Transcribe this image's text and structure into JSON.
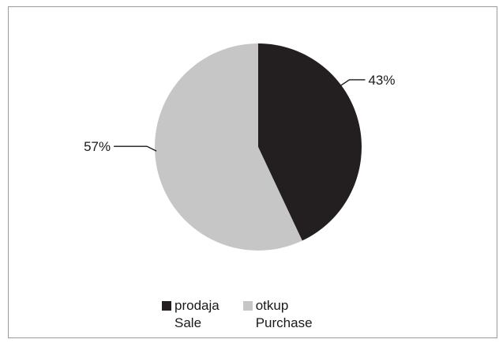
{
  "chart_data": {
    "type": "pie",
    "slices": [
      {
        "label_line1": "prodaja",
        "label_line2": "Sale",
        "value": 43,
        "data_label": "43%",
        "color": "#231f20"
      },
      {
        "label_line1": "otkup",
        "label_line2": "Purchase",
        "value": 57,
        "data_label": "57%",
        "color": "#c6c6c6"
      }
    ],
    "start_angle_deg": 0,
    "direction": "clockwise",
    "legend_position": "bottom",
    "title": ""
  }
}
